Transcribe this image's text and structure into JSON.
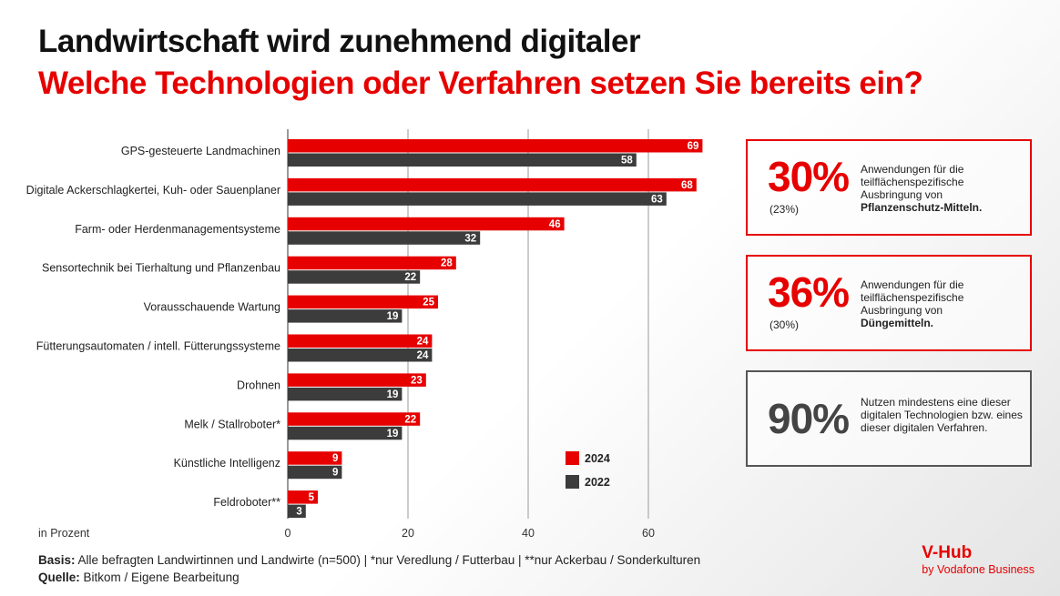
{
  "title": "Landwirtschaft wird zunehmend digitaler",
  "subtitle": "Welche Technologien oder Verfahren setzen Sie bereits ein?",
  "chart_data": {
    "type": "bar",
    "orientation": "horizontal",
    "xlabel": "in Prozent",
    "xlim": [
      0,
      70
    ],
    "ticks": [
      0,
      20,
      40,
      60
    ],
    "grid": true,
    "legend_position": "bottom-right",
    "categories": [
      "GPS-gesteuerte Landmachinen",
      "Digitale Ackerschlagkertei, Kuh- oder Sauenplaner",
      "Farm- oder Herdenmanagementsysteme",
      "Sensortechnik bei Tierhaltung und Pflanzenbau",
      "Vorausschauende Wartung",
      "Fütterungsautomaten / intell. Fütterungssysteme",
      "Drohnen",
      "Melk / Stallroboter*",
      "Künstliche Intelligenz",
      "Feldroboter**"
    ],
    "series": [
      {
        "name": "2024",
        "color": "#e60000",
        "values": [
          69,
          68,
          46,
          28,
          25,
          24,
          23,
          22,
          9,
          5
        ]
      },
      {
        "name": "2022",
        "color": "#3c3c3c",
        "values": [
          58,
          63,
          32,
          22,
          19,
          24,
          19,
          19,
          9,
          3
        ]
      }
    ]
  },
  "boxes": [
    {
      "value": "30%",
      "prev": "(23%)",
      "text": "Anwendungen für die teilflächenspezifische Ausbringung von",
      "bold": "Pflanzenschutz-Mitteln."
    },
    {
      "value": "36%",
      "prev": "(30%)",
      "text": "Anwendungen für die teilflächenspezifische Ausbringung von",
      "bold": "Düngemitteln."
    },
    {
      "value": "90%",
      "prev": "",
      "text": "Nutzen mindestens eine dieser digitalen Technologien bzw. eines dieser digitalen Verfahren.",
      "bold": ""
    }
  ],
  "footer": {
    "basis_label": "Basis:",
    "basis": " Alle befragten Landwirtinnen und Landwirte (n=500) | *nur Veredlung / Futterbau | **nur Ackerbau / Sonderkulturen",
    "source_label": "Quelle:",
    "source": " Bitkom / Eigene Bearbeitung"
  },
  "logo": {
    "name": "V-Hub",
    "by": "by Vodafone Business"
  }
}
